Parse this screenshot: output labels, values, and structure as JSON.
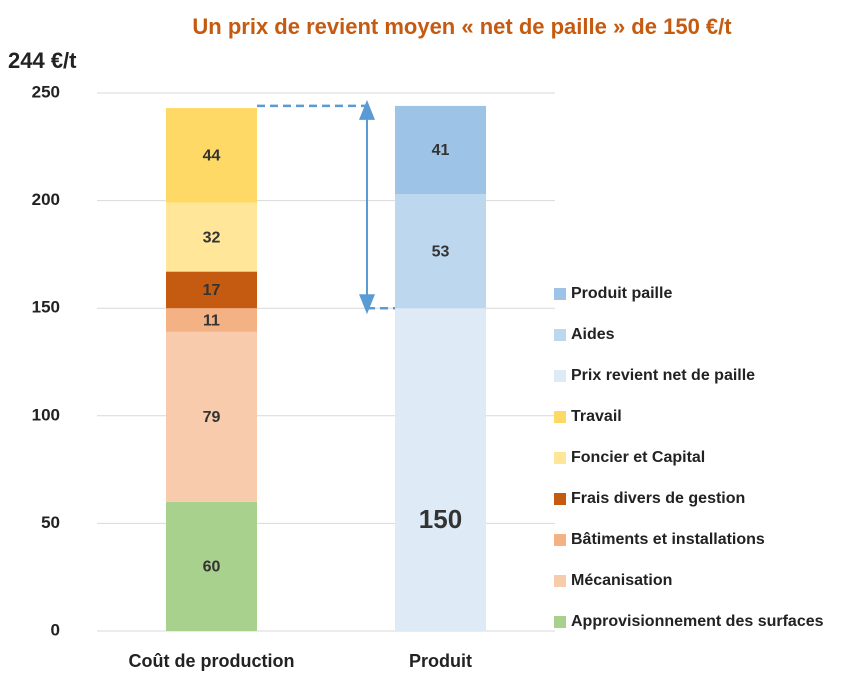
{
  "chart_data": {
    "type": "stacked_bar",
    "title": "Un prix de revient moyen « net de paille » de 150 €/t",
    "annotation": "244 €/t",
    "categories": [
      "Coût de production",
      "Produit"
    ],
    "series": [
      {
        "name": "Approvisionnement des surfaces",
        "color": "#a9d18e",
        "values": [
          60,
          null
        ]
      },
      {
        "name": "Mécanisation",
        "color": "#f8cbad",
        "values": [
          79,
          null
        ]
      },
      {
        "name": "Bâtiments et installations",
        "color": "#f4b183",
        "values": [
          11,
          null
        ]
      },
      {
        "name": "Frais divers de gestion",
        "color": "#c55a11",
        "values": [
          17,
          null
        ]
      },
      {
        "name": "Foncier et Capital",
        "color": "#ffe699",
        "values": [
          32,
          null
        ]
      },
      {
        "name": "Travail",
        "color": "#ffd966",
        "values": [
          44,
          null
        ]
      },
      {
        "name": "Prix revient net de paille",
        "color": "#deebf7",
        "values": [
          null,
          150
        ]
      },
      {
        "name": "Aides",
        "color": "#bdd7ee",
        "values": [
          null,
          53
        ]
      },
      {
        "name": "Produit paille",
        "color": "#9dc3e6",
        "values": [
          null,
          41
        ]
      }
    ],
    "ylim": [
      0,
      250
    ],
    "yticks": [
      0,
      50,
      100,
      150,
      200,
      250
    ],
    "grid": true,
    "legend": "right"
  }
}
